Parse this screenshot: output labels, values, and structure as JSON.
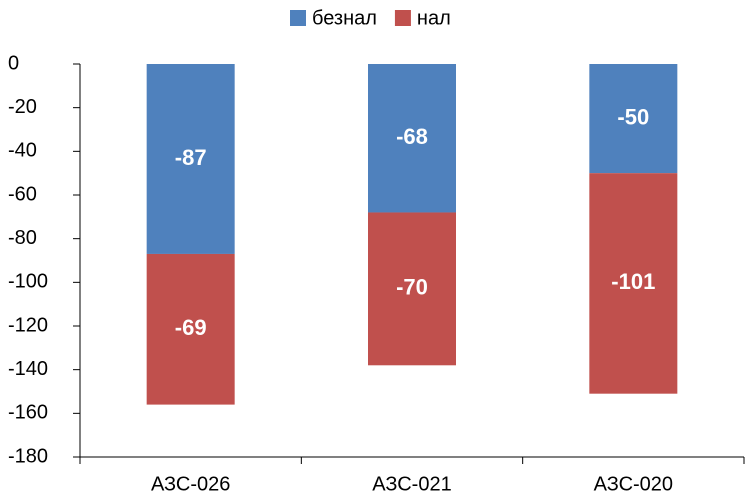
{
  "chart_data": {
    "type": "bar",
    "stacked": true,
    "categories": [
      "АЗС-026",
      "АЗС-021",
      "АЗС-020"
    ],
    "series": [
      {
        "name": "безнал",
        "color": "#4f81bd",
        "values": [
          -87,
          -68,
          -50
        ]
      },
      {
        "name": "нал",
        "color": "#c0504d",
        "values": [
          -69,
          -70,
          -101
        ]
      }
    ],
    "ylim": [
      -180,
      0
    ],
    "yticks": [
      0,
      -20,
      -40,
      -60,
      -80,
      -100,
      -120,
      -140,
      -160,
      -180
    ],
    "legend": "top"
  }
}
